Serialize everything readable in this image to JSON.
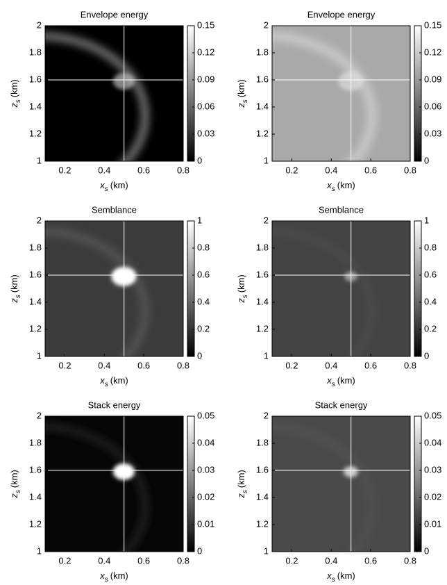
{
  "chart_data": [
    {
      "type": "heatmap",
      "title": "Envelope energy",
      "xlabel": {
        "var": "x",
        "sub": "s",
        "unit": "(km)"
      },
      "ylabel": {
        "var": "z",
        "sub": "s",
        "unit": "(km)"
      },
      "xlim": [
        0.1,
        0.8
      ],
      "xticks": [
        0.2,
        0.4,
        0.6,
        0.8
      ],
      "ylim": [
        1,
        2
      ],
      "yticks": [
        1,
        1.2,
        1.4,
        1.6,
        1.8,
        2
      ],
      "clim": [
        0,
        0.15
      ],
      "cticks": [
        0,
        0.03,
        0.06,
        0.09,
        0.12,
        0.15
      ],
      "marker": {
        "x": 0.5,
        "y": 1.6
      }
    },
    {
      "type": "heatmap",
      "title": "Envelope energy",
      "xlabel": {
        "var": "x",
        "sub": "s",
        "unit": "(km)"
      },
      "ylabel": {
        "var": "z",
        "sub": "s",
        "unit": "(km)"
      },
      "xlim": [
        0.1,
        0.8
      ],
      "xticks": [
        0.2,
        0.4,
        0.6,
        0.8
      ],
      "ylim": [
        1,
        2
      ],
      "yticks": [
        1,
        1.2,
        1.4,
        1.6,
        1.8,
        2
      ],
      "clim": [
        0,
        0.15
      ],
      "cticks": [
        0,
        0.03,
        0.06,
        0.09,
        0.12,
        0.15
      ],
      "marker": {
        "x": 0.5,
        "y": 1.6
      }
    },
    {
      "type": "heatmap",
      "title": "Semblance",
      "xlabel": {
        "var": "x",
        "sub": "s",
        "unit": "(km)"
      },
      "ylabel": {
        "var": "z",
        "sub": "s",
        "unit": "(km)"
      },
      "xlim": [
        0.1,
        0.8
      ],
      "xticks": [
        0.2,
        0.4,
        0.6,
        0.8
      ],
      "ylim": [
        1,
        2
      ],
      "yticks": [
        1,
        1.2,
        1.4,
        1.6,
        1.8,
        2
      ],
      "clim": [
        0,
        1
      ],
      "cticks": [
        0,
        0.2,
        0.4,
        0.6,
        0.8,
        1
      ],
      "marker": {
        "x": 0.5,
        "y": 1.6
      }
    },
    {
      "type": "heatmap",
      "title": "Semblance",
      "xlabel": {
        "var": "x",
        "sub": "s",
        "unit": "(km)"
      },
      "ylabel": {
        "var": "z",
        "sub": "s",
        "unit": "(km)"
      },
      "xlim": [
        0.1,
        0.8
      ],
      "xticks": [
        0.2,
        0.4,
        0.6,
        0.8
      ],
      "ylim": [
        1,
        2
      ],
      "yticks": [
        1,
        1.2,
        1.4,
        1.6,
        1.8,
        2
      ],
      "clim": [
        0,
        1
      ],
      "cticks": [
        0,
        0.2,
        0.4,
        0.6,
        0.8,
        1
      ],
      "marker": {
        "x": 0.5,
        "y": 1.6
      }
    },
    {
      "type": "heatmap",
      "title": "Stack energy",
      "xlabel": {
        "var": "x",
        "sub": "s",
        "unit": "(km)"
      },
      "ylabel": {
        "var": "z",
        "sub": "s",
        "unit": "(km)"
      },
      "xlim": [
        0.1,
        0.8
      ],
      "xticks": [
        0.2,
        0.4,
        0.6,
        0.8
      ],
      "ylim": [
        1,
        2
      ],
      "yticks": [
        1,
        1.2,
        1.4,
        1.6,
        1.8,
        2
      ],
      "clim": [
        0,
        0.05
      ],
      "cticks": [
        0,
        0.01,
        0.02,
        0.03,
        0.04,
        0.05
      ],
      "marker": {
        "x": 0.5,
        "y": 1.6
      }
    },
    {
      "type": "heatmap",
      "title": "Stack energy",
      "xlabel": {
        "var": "x",
        "sub": "s",
        "unit": "(km)"
      },
      "ylabel": {
        "var": "z",
        "sub": "s",
        "unit": "(km)"
      },
      "xlim": [
        0.1,
        0.8
      ],
      "xticks": [
        0.2,
        0.4,
        0.6,
        0.8
      ],
      "ylim": [
        1,
        2
      ],
      "yticks": [
        1,
        1.2,
        1.4,
        1.6,
        1.8,
        2
      ],
      "clim": [
        0,
        0.05
      ],
      "cticks": [
        0,
        0.01,
        0.02,
        0.03,
        0.04,
        0.05
      ],
      "marker": {
        "x": 0.5,
        "y": 1.6
      }
    }
  ]
}
